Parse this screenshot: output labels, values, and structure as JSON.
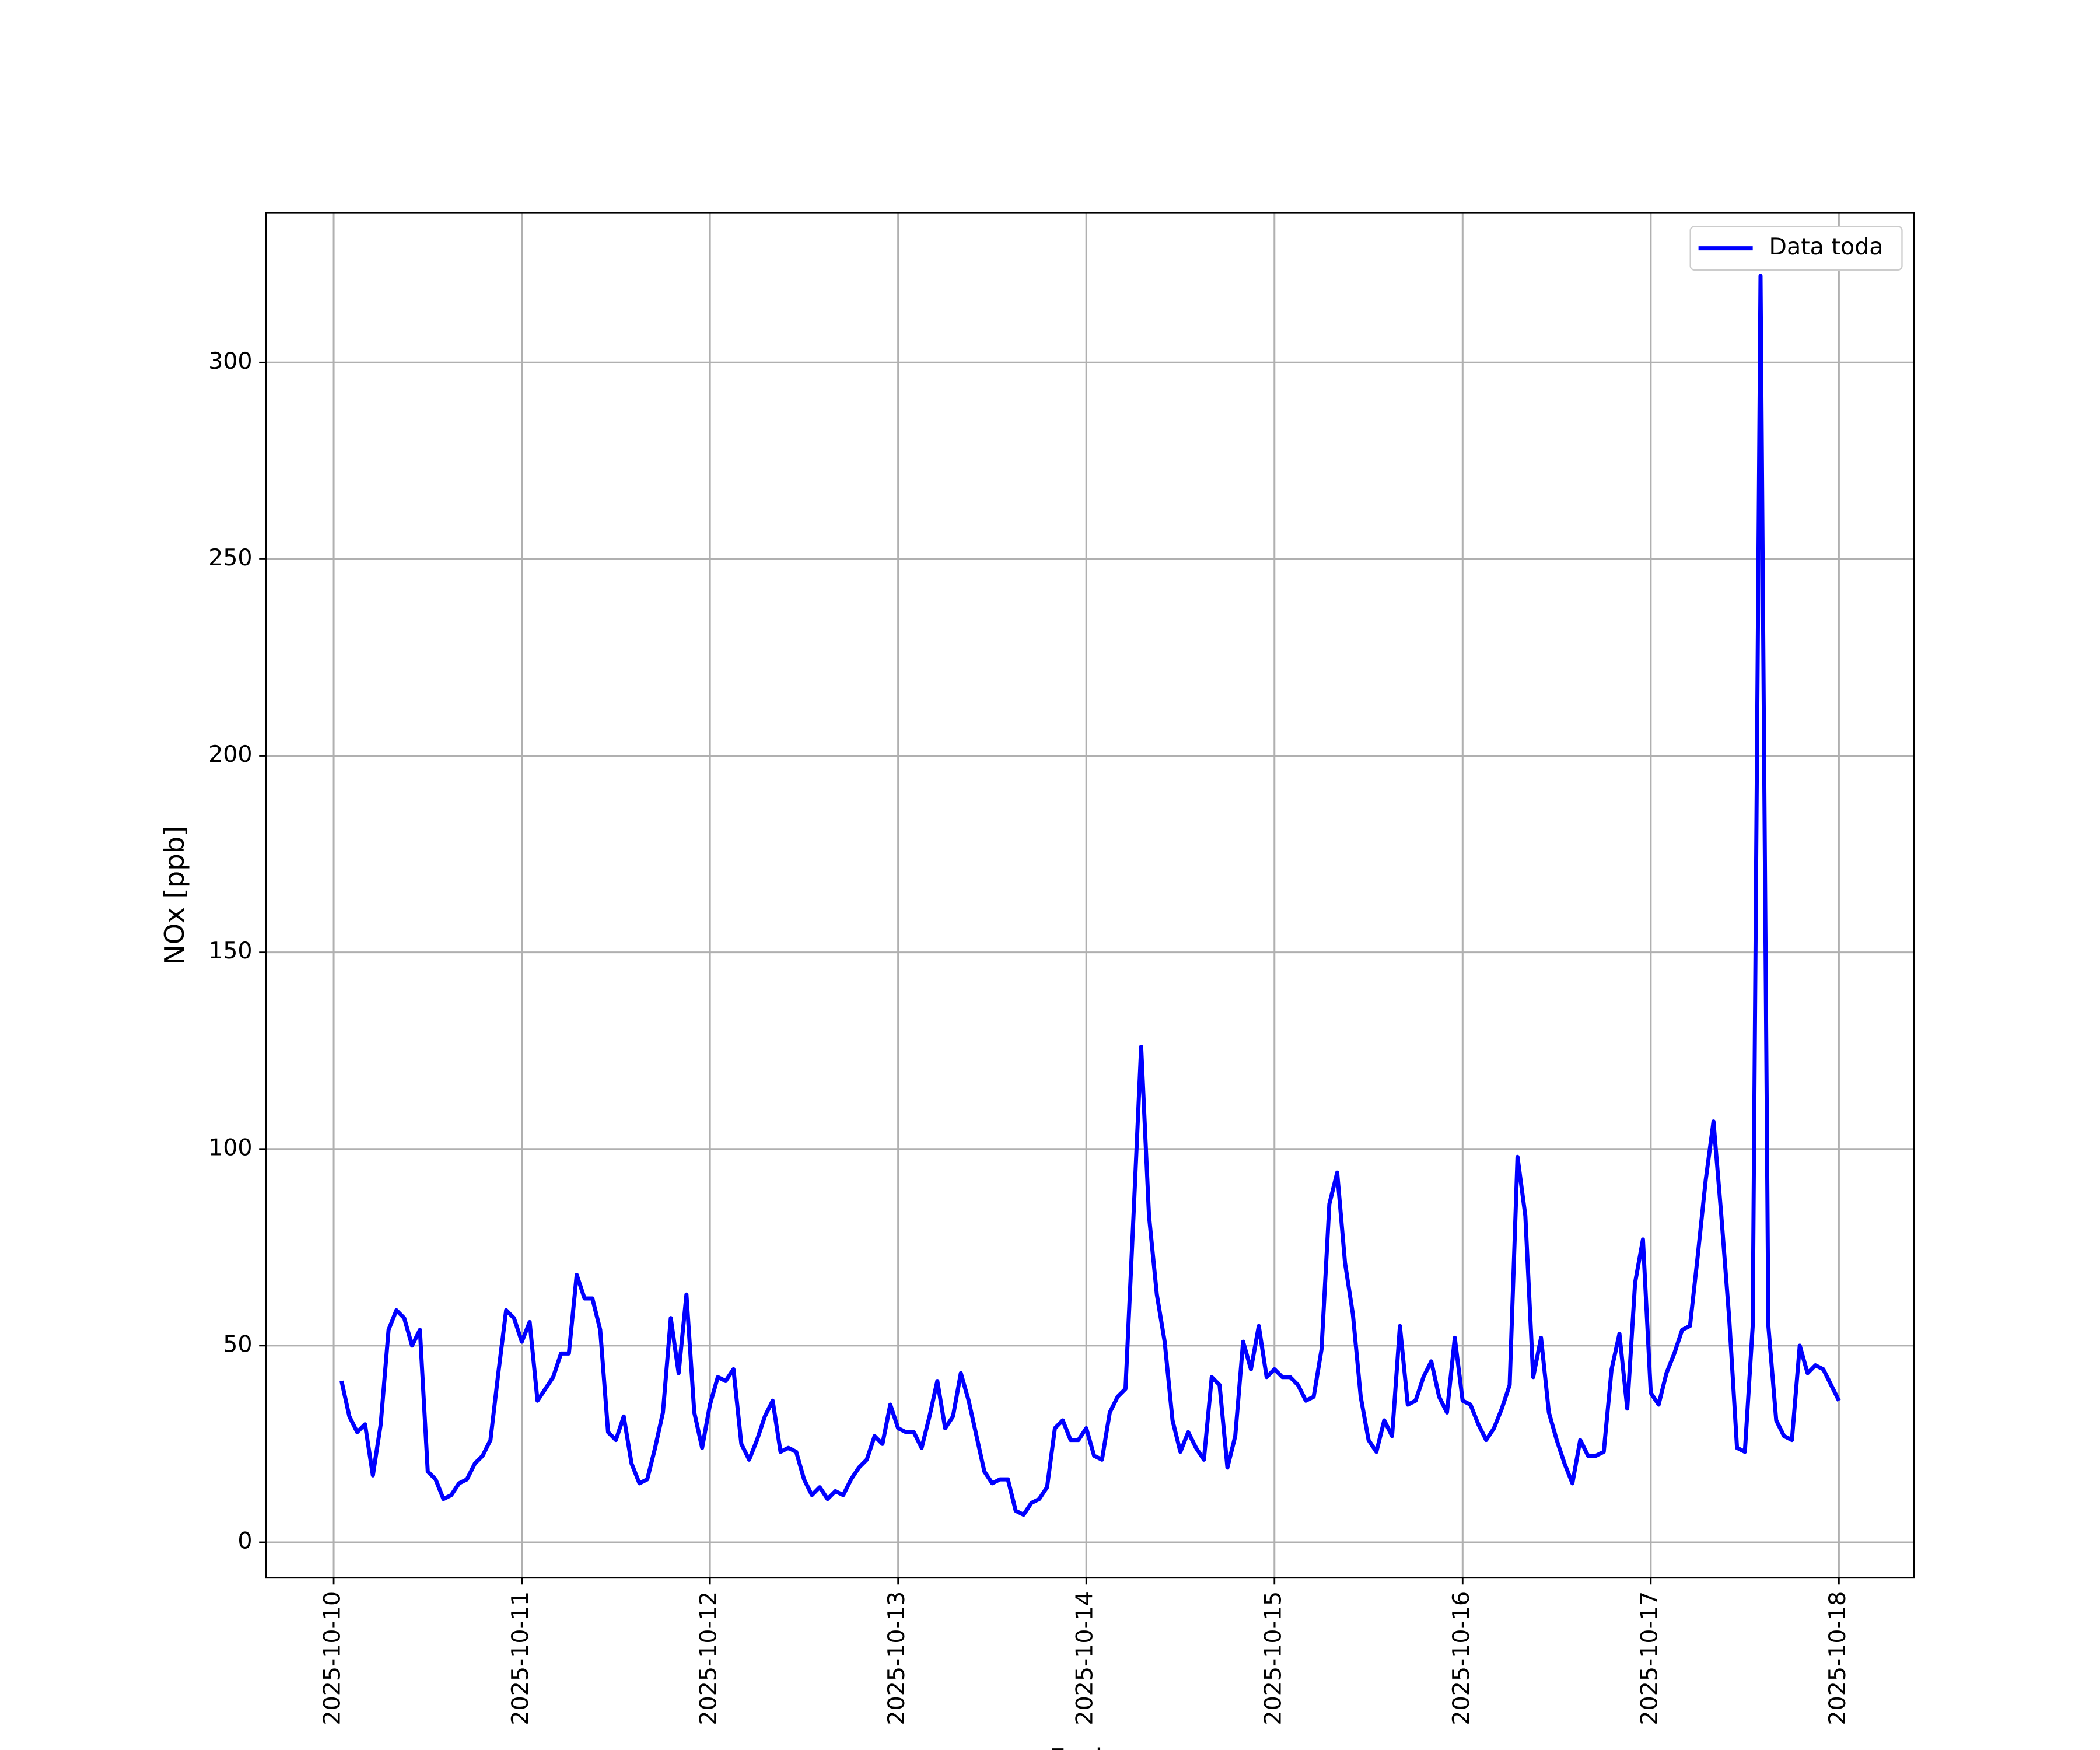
{
  "chart_data": {
    "type": "line",
    "x_label": "Fecha",
    "y_label": "NOx [ppb]",
    "x": [
      1,
      2,
      3,
      4,
      5,
      6,
      7,
      8,
      9,
      10,
      11,
      12,
      13,
      14,
      15,
      16,
      17,
      18,
      19,
      20,
      21,
      22,
      23,
      24,
      25,
      26,
      27,
      28,
      29,
      30,
      31,
      32,
      33,
      34,
      35,
      36,
      37,
      38,
      39,
      40,
      41,
      42,
      43,
      44,
      45,
      46,
      47,
      48,
      49,
      50,
      51,
      52,
      53,
      54,
      55,
      56,
      57,
      58,
      59,
      60,
      61,
      62,
      63,
      64,
      65,
      66,
      67,
      68,
      69,
      70,
      71,
      72,
      73,
      74,
      75,
      76,
      77,
      78,
      79,
      80,
      81,
      82,
      83,
      84,
      85,
      86,
      87,
      88,
      89,
      90,
      91,
      92,
      93,
      94,
      95,
      96,
      97,
      98,
      99,
      100,
      101,
      102,
      103,
      104,
      105,
      106,
      107,
      108,
      109,
      110,
      111,
      112,
      113,
      114,
      115,
      116,
      117,
      118,
      119,
      120,
      121,
      122,
      123,
      124,
      125,
      126,
      127,
      128,
      129,
      130,
      131,
      132,
      133,
      134,
      135,
      136,
      137,
      138,
      139,
      140,
      141,
      142,
      143,
      144,
      145,
      146,
      147,
      148,
      149,
      150,
      151,
      152,
      153,
      154,
      155,
      156,
      157,
      158,
      159,
      160,
      161,
      162,
      163,
      164,
      165,
      166,
      167,
      168,
      169,
      170,
      171,
      172,
      173,
      174,
      175,
      176,
      177,
      178,
      179,
      180,
      181,
      182,
      183,
      184,
      185,
      186,
      187,
      188,
      189,
      190,
      191,
      192
    ],
    "series": [
      {
        "name": "Data toda",
        "color": "#0000ff",
        "values": [
          41,
          32,
          28,
          30,
          17,
          30,
          54,
          59,
          57,
          50,
          54,
          18,
          16,
          11,
          12,
          15,
          16,
          20,
          22,
          26,
          43,
          59,
          57,
          51,
          56,
          36,
          39,
          42,
          48,
          48,
          68,
          62,
          62,
          54,
          28,
          26,
          32,
          20,
          15,
          16,
          24,
          33,
          57,
          43,
          63,
          33,
          24,
          35,
          42,
          41,
          44,
          25,
          21,
          26,
          32,
          36,
          23,
          24,
          23,
          16,
          12,
          14,
          11,
          13,
          12,
          16,
          19,
          21,
          27,
          25,
          35,
          29,
          28,
          28,
          24,
          32,
          41,
          29,
          32,
          43,
          36,
          27,
          18,
          15,
          16,
          16,
          8,
          7,
          10,
          11,
          14,
          29,
          31,
          26,
          26,
          29,
          22,
          21,
          33,
          37,
          39,
          82,
          126,
          83,
          63,
          51,
          31,
          23,
          28,
          24,
          21,
          42,
          40,
          19,
          27,
          51,
          44,
          55,
          42,
          44,
          42,
          42,
          40,
          36,
          37,
          49,
          86,
          94,
          71,
          58,
          37,
          26,
          23,
          31,
          27,
          55,
          35,
          36,
          42,
          46,
          37,
          33,
          52,
          36,
          35,
          30,
          26,
          29,
          34,
          40,
          98,
          83,
          42,
          52,
          33,
          26,
          20,
          15,
          26,
          22,
          22,
          23,
          44,
          53,
          34,
          66,
          77,
          38,
          35,
          43,
          48,
          54,
          55,
          73,
          92,
          107,
          83,
          57,
          24,
          23,
          55,
          322,
          55,
          31,
          27,
          26,
          50,
          43,
          45,
          44,
          40,
          36
        ]
      }
    ],
    "xlim": [
      -8.65,
      201.6
    ],
    "xticks": [
      {
        "value": 0,
        "label": "2025-10-10"
      },
      {
        "value": 24,
        "label": "2025-10-11"
      },
      {
        "value": 48,
        "label": "2025-10-12"
      },
      {
        "value": 72,
        "label": "2025-10-13"
      },
      {
        "value": 96,
        "label": "2025-10-14"
      },
      {
        "value": 120,
        "label": "2025-10-15"
      },
      {
        "value": 144,
        "label": "2025-10-16"
      },
      {
        "value": 168,
        "label": "2025-10-17"
      },
      {
        "value": 192,
        "label": "2025-10-18"
      }
    ],
    "ylim": [
      -9,
      338
    ],
    "yticks": [
      0,
      50,
      100,
      150,
      200,
      250,
      300
    ],
    "grid": true,
    "legend": "upper right"
  }
}
